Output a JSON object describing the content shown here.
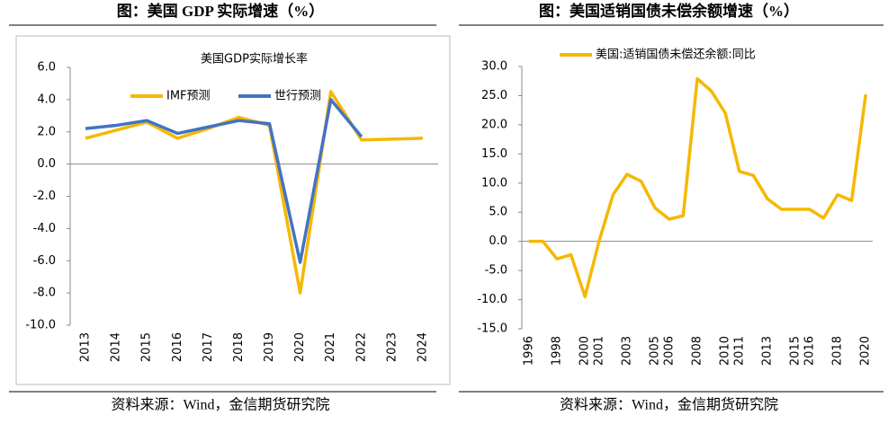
{
  "chart_data": [
    {
      "type": "line",
      "caption": "图：美国 GDP 实际增速（%）",
      "title": "美国GDP实际增长率",
      "source": "资料来源：Wind，金信期货研究院",
      "categories": [
        "2013",
        "2014",
        "2015",
        "2016",
        "2017",
        "2018",
        "2019",
        "2020",
        "2021",
        "2022",
        "2023",
        "2024"
      ],
      "series": [
        {
          "name": "IMF预测",
          "color": "#f5b800",
          "values": [
            1.6,
            2.1,
            2.6,
            1.6,
            2.2,
            2.9,
            2.4,
            -8.0,
            4.5,
            1.5,
            1.55,
            1.6
          ]
        },
        {
          "name": "世行预测",
          "color": "#4472c4",
          "values": [
            2.2,
            2.4,
            2.7,
            1.9,
            2.3,
            2.7,
            2.5,
            -6.1,
            4.0,
            1.7,
            null,
            null
          ]
        }
      ],
      "ylim": [
        -10,
        6
      ],
      "yticks": [
        {
          "value": -10,
          "label": "-10.0"
        },
        {
          "value": -8,
          "label": "-8.0"
        },
        {
          "value": -6,
          "label": "-6.0"
        },
        {
          "value": -4,
          "label": "-4.0"
        },
        {
          "value": -2,
          "label": "-2.0"
        },
        {
          "value": 0,
          "label": "0.0"
        },
        {
          "value": 2,
          "label": "2.0"
        },
        {
          "value": 4,
          "label": "4.0"
        },
        {
          "value": 6,
          "label": "6.0"
        }
      ],
      "grid": false,
      "legend": "top"
    },
    {
      "type": "line",
      "caption": "图：美国适销国债未偿余额增速（%）",
      "source": "资料来源：Wind，金信期货研究院",
      "categories": [
        "1996",
        null,
        "1998",
        null,
        "2000",
        "2001",
        null,
        "2003",
        null,
        "2005",
        "2006",
        null,
        "2008",
        null,
        "2010",
        "2011",
        null,
        "2013",
        null,
        "2015",
        "2016",
        null,
        "2018",
        null,
        "2020"
      ],
      "series": [
        {
          "name": "美国:适销国债未偿还余额:同比",
          "color": "#f5b800",
          "values": [
            0,
            0,
            -3,
            -2.3,
            -9.5,
            0,
            8,
            11.5,
            10.3,
            5.7,
            3.8,
            4.4,
            27.9,
            25.8,
            22,
            12,
            11.3,
            7.3,
            5.5,
            5.5,
            5.5,
            4,
            8,
            7,
            25.2
          ]
        }
      ],
      "ylim": [
        -15,
        30
      ],
      "yticks": [
        {
          "value": -15,
          "label": "-15.0"
        },
        {
          "value": -10,
          "label": "-10.0"
        },
        {
          "value": -5,
          "label": "-5.0"
        },
        {
          "value": 0,
          "label": "0.0"
        },
        {
          "value": 5,
          "label": "5.0"
        },
        {
          "value": 10,
          "label": "10.0"
        },
        {
          "value": 15,
          "label": "15.0"
        },
        {
          "value": 20,
          "label": "20.0"
        },
        {
          "value": 25,
          "label": "25.0"
        },
        {
          "value": 30,
          "label": "30.0"
        }
      ],
      "grid": false,
      "legend": "top"
    }
  ]
}
